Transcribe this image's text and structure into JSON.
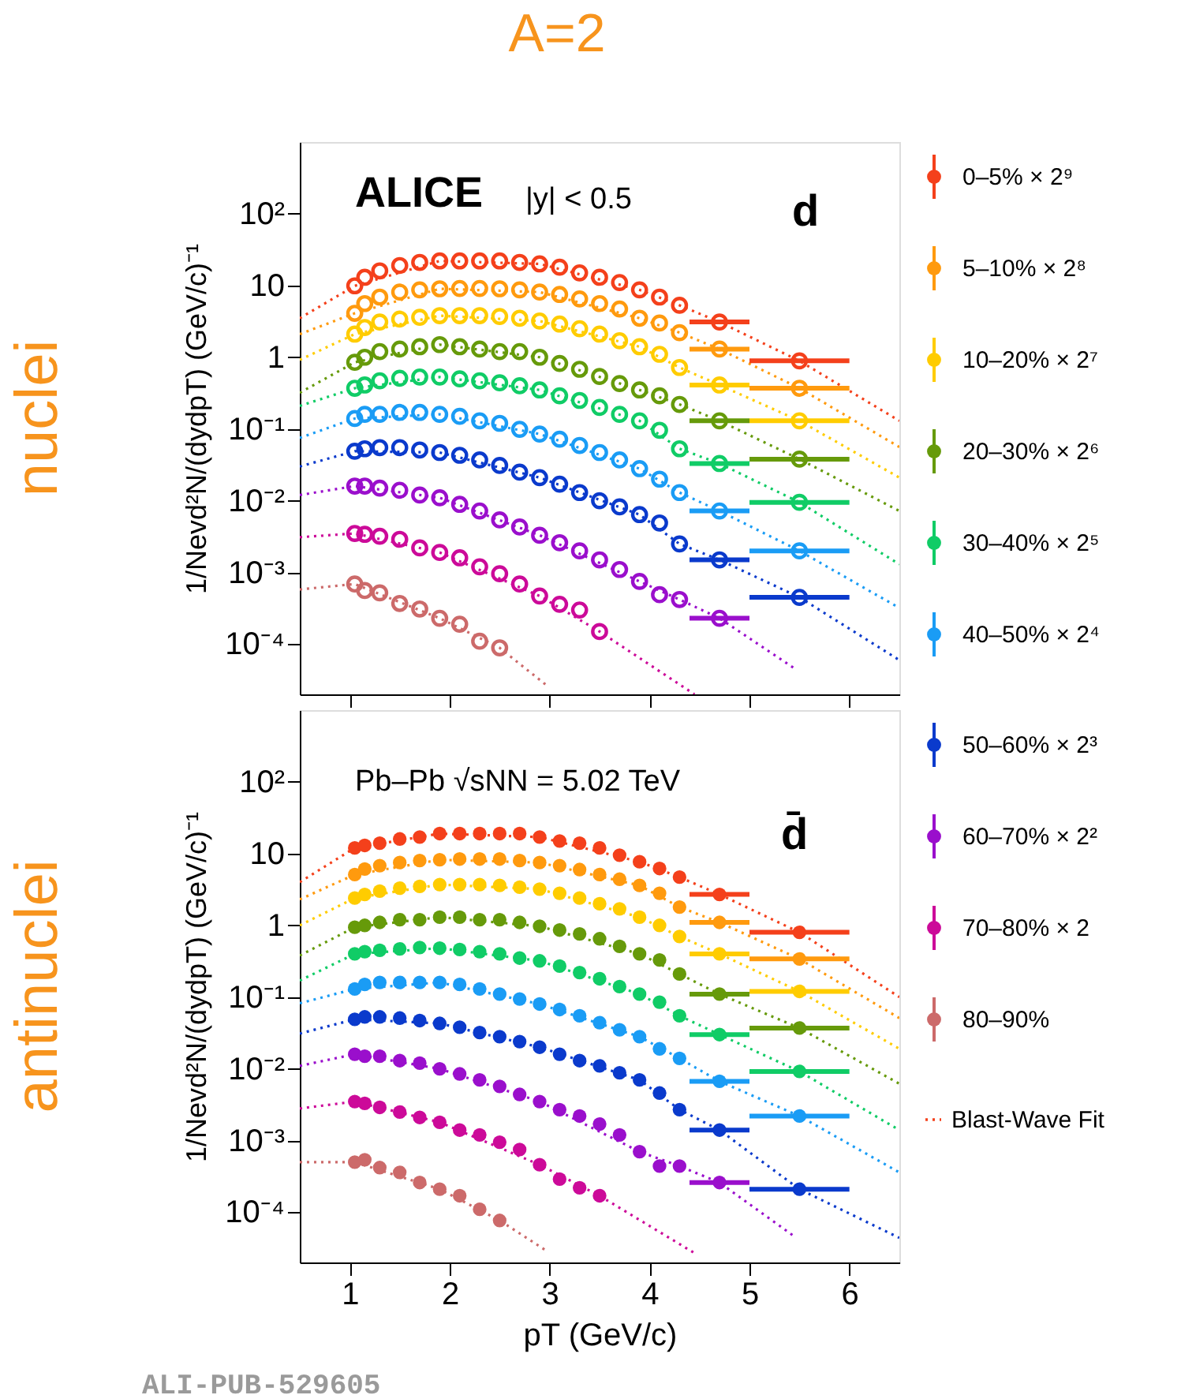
{
  "chart_data": [
    {
      "type": "scatter",
      "title": "A=2",
      "ylabel": "1/Nevd²N/(dydpT) (GeV/c)⁻¹",
      "log": "y",
      "xlim": [
        0.5,
        6.5
      ],
      "ylim": [
        2e-05,
        1000
      ],
      "xticks": [
        1,
        2,
        3,
        4,
        5,
        6
      ],
      "yticks": [
        {
          "value": 0.0001,
          "label": "10⁻⁴"
        },
        {
          "value": 0.001,
          "label": "10⁻³"
        },
        {
          "value": 0.01,
          "label": "10⁻²"
        },
        {
          "value": 0.1,
          "label": "10⁻¹"
        },
        1,
        10,
        {
          "value": 100,
          "label": "10²"
        }
      ],
      "tick_labels": "y",
      "legend": "right",
      "marker": "circle",
      "annotations": [
        "nuclei",
        "ALICE",
        "|y| < 0.5",
        "d"
      ],
      "x": [
        1.05,
        1.15,
        1.3,
        1.5,
        1.7,
        1.9,
        2.1,
        2.3,
        2.5,
        2.7,
        2.9,
        3.1,
        3.3,
        3.5,
        3.7,
        3.9,
        4.1,
        4.3,
        4.7,
        5.5
      ],
      "series": [
        {
          "name": "0–5% × 2⁹",
          "color": "#f4401b",
          "values": [
            9.9,
            13,
            16,
            19,
            21,
            22,
            22,
            22,
            22,
            21,
            20,
            18,
            15,
            13,
            11,
            8.7,
            6.9,
            5.3,
            3.1,
            0.89
          ],
          "xerrors": [
            null,
            null,
            null,
            null,
            null,
            null,
            null,
            null,
            null,
            null,
            null,
            null,
            null,
            null,
            null,
            null,
            null,
            null,
            0.3,
            0.5
          ]
        },
        {
          "name": "5–10% × 2⁸",
          "color": "#ff9a0e",
          "values": [
            4.1,
            5.6,
            6.9,
            8.1,
            8.7,
            9.0,
            9.1,
            9.1,
            9.0,
            8.7,
            8.1,
            7.5,
            6.5,
            5.6,
            4.7,
            3.5,
            3.0,
            2.2,
            1.3,
            0.37
          ],
          "xerrors": [
            null,
            null,
            null,
            null,
            null,
            null,
            null,
            null,
            null,
            null,
            null,
            null,
            null,
            null,
            null,
            null,
            null,
            null,
            0.3,
            0.5
          ]
        },
        {
          "name": "10–20% × 2⁷",
          "color": "#ffcc00",
          "values": [
            2.1,
            2.6,
            3.1,
            3.4,
            3.6,
            3.8,
            3.8,
            3.8,
            3.7,
            3.5,
            3.2,
            2.9,
            2.5,
            2.1,
            1.7,
            1.4,
            1.1,
            0.72,
            0.41,
            0.13
          ],
          "xerrors": [
            null,
            null,
            null,
            null,
            null,
            null,
            null,
            null,
            null,
            null,
            null,
            null,
            null,
            null,
            null,
            null,
            null,
            null,
            0.3,
            0.5
          ]
        },
        {
          "name": "20–30% × 2⁶",
          "color": "#669a0a",
          "values": [
            0.85,
            1.0,
            1.2,
            1.3,
            1.4,
            1.5,
            1.4,
            1.3,
            1.2,
            1.2,
            1.0,
            0.82,
            0.68,
            0.54,
            0.43,
            0.35,
            0.29,
            0.22,
            0.13,
            0.038
          ],
          "xerrors": [
            null,
            null,
            null,
            null,
            null,
            null,
            null,
            null,
            null,
            null,
            null,
            null,
            null,
            null,
            null,
            null,
            null,
            null,
            0.3,
            0.5
          ]
        },
        {
          "name": "30–40% × 2⁵",
          "color": "#10cc66",
          "values": [
            0.37,
            0.41,
            0.47,
            0.51,
            0.53,
            0.53,
            0.5,
            0.47,
            0.44,
            0.4,
            0.35,
            0.29,
            0.25,
            0.2,
            0.16,
            0.13,
            0.096,
            0.053,
            0.033,
            0.0095
          ],
          "xerrors": [
            null,
            null,
            null,
            null,
            null,
            null,
            null,
            null,
            null,
            null,
            null,
            null,
            null,
            null,
            null,
            null,
            null,
            null,
            0.3,
            0.5
          ]
        },
        {
          "name": "40–50% × 2⁴",
          "color": "#1a9cf5",
          "values": [
            0.14,
            0.16,
            0.16,
            0.17,
            0.17,
            0.16,
            0.15,
            0.13,
            0.12,
            0.099,
            0.085,
            0.072,
            0.059,
            0.047,
            0.037,
            0.028,
            0.02,
            0.013,
            0.0072,
            0.002
          ],
          "xerrors": [
            null,
            null,
            null,
            null,
            null,
            null,
            null,
            null,
            null,
            null,
            null,
            null,
            null,
            null,
            null,
            null,
            null,
            null,
            0.3,
            0.5
          ]
        },
        {
          "color": "#0a3acc",
          "values": [
            0.049,
            0.053,
            0.055,
            0.055,
            0.051,
            0.047,
            0.043,
            0.037,
            0.031,
            0.025,
            0.021,
            0.017,
            0.013,
            0.01,
            0.0082,
            0.0064,
            0.0049,
            0.0025,
            0.0015,
            0.00045
          ],
          "xerrors": [
            null,
            null,
            null,
            null,
            null,
            null,
            null,
            null,
            null,
            null,
            null,
            null,
            null,
            null,
            null,
            null,
            null,
            null,
            0.3,
            0.5
          ]
        },
        {
          "color": "#9a0fcc",
          "values": [
            0.016,
            0.016,
            0.015,
            0.014,
            0.012,
            0.011,
            0.0089,
            0.0072,
            0.0054,
            0.0043,
            0.0033,
            0.0026,
            0.002,
            0.0015,
            0.0011,
            0.00075,
            0.00049,
            0.00042,
            0.00023,
            null
          ],
          "xerrors": [
            null,
            null,
            null,
            null,
            null,
            null,
            null,
            null,
            null,
            null,
            null,
            null,
            null,
            null,
            null,
            null,
            null,
            null,
            0.3,
            null
          ]
        },
        {
          "color": "#cc0a99",
          "values": [
            0.0035,
            0.0034,
            0.0032,
            0.0029,
            0.0022,
            0.0019,
            0.0016,
            0.0012,
            0.00096,
            0.00069,
            0.00047,
            0.00036,
            0.0003,
            0.00015,
            null,
            null,
            null,
            null,
            null,
            null
          ]
        },
        {
          "color": "#cc6a6a",
          "values": [
            0.00069,
            0.00056,
            0.00052,
            0.00037,
            0.00031,
            0.00023,
            0.00019,
            0.00011,
            8.9e-05,
            null,
            null,
            null,
            null,
            null,
            null,
            null,
            null,
            null,
            null,
            null
          ]
        },
        {
          "type": "line",
          "line_style": "dotted",
          "marker": "none",
          "color": "#f4401b",
          "x": [
            0.5,
            1.05,
            1.9,
            2.9,
            3.9,
            4.3,
            4.7,
            5.5,
            6.5
          ],
          "values": [
            3.5,
            9.9,
            22,
            20,
            8.7,
            5.3,
            3.1,
            0.89,
            0.13
          ]
        },
        {
          "type": "line",
          "line_style": "dotted",
          "marker": "none",
          "color": "#ff9a0e",
          "x": [
            0.5,
            1.05,
            1.9,
            2.9,
            3.9,
            4.3,
            4.7,
            5.5,
            6.5
          ],
          "values": [
            2.1,
            4.1,
            9.0,
            8.1,
            3.5,
            2.2,
            1.3,
            0.37,
            0.056
          ]
        },
        {
          "type": "line",
          "line_style": "dotted",
          "marker": "none",
          "color": "#ffcc00",
          "x": [
            0.5,
            1.05,
            1.9,
            2.9,
            3.9,
            4.3,
            4.7,
            5.5,
            6.5
          ],
          "values": [
            0.92,
            2.1,
            3.8,
            3.2,
            1.4,
            0.72,
            0.41,
            0.13,
            0.021
          ]
        },
        {
          "type": "line",
          "line_style": "dotted",
          "marker": "none",
          "color": "#669a0a",
          "x": [
            0.5,
            1.05,
            1.9,
            2.9,
            3.9,
            4.3,
            4.7,
            5.5,
            6.5
          ],
          "values": [
            0.32,
            0.85,
            1.5,
            1.0,
            0.35,
            0.22,
            0.13,
            0.038,
            0.0072
          ]
        },
        {
          "type": "line",
          "line_style": "dotted",
          "marker": "none",
          "color": "#10cc66",
          "x": [
            0.5,
            1.05,
            1.9,
            2.9,
            3.9,
            4.3,
            4.7,
            5.5,
            6.5
          ],
          "values": [
            0.21,
            0.37,
            0.53,
            0.35,
            0.13,
            0.053,
            0.033,
            0.0095,
            0.0013
          ]
        },
        {
          "type": "line",
          "line_style": "dotted",
          "marker": "none",
          "color": "#1a9cf5",
          "x": [
            0.5,
            1.05,
            1.9,
            2.9,
            3.9,
            4.3,
            4.7,
            5.5,
            6.5
          ],
          "values": [
            0.075,
            0.14,
            0.16,
            0.085,
            0.028,
            0.013,
            0.0072,
            0.002,
            0.00032
          ]
        },
        {
          "type": "line",
          "line_style": "dotted",
          "marker": "none",
          "color": "#0a3acc",
          "x": [
            0.5,
            1.05,
            1.9,
            2.9,
            3.9,
            4.3,
            4.7,
            5.5,
            6.5
          ],
          "values": [
            0.03,
            0.049,
            0.047,
            0.021,
            0.0064,
            0.0025,
            0.0015,
            0.00045,
            6e-05
          ]
        },
        {
          "type": "line",
          "line_style": "dotted",
          "marker": "none",
          "color": "#9a0fcc",
          "x": [
            0.5,
            1.05,
            1.9,
            2.9,
            3.9,
            4.3,
            4.7,
            5.44
          ],
          "values": [
            0.012,
            0.016,
            0.011,
            0.0033,
            0.00075,
            0.00042,
            0.00023,
            4.7e-05
          ]
        },
        {
          "type": "line",
          "line_style": "dotted",
          "marker": "none",
          "color": "#cc0a99",
          "x": [
            0.5,
            1.05,
            1.9,
            2.9,
            3.5,
            4.45
          ],
          "values": [
            0.0031,
            0.0035,
            0.0019,
            0.00047,
            0.00015,
            2e-05
          ]
        },
        {
          "type": "line",
          "line_style": "dotted",
          "marker": "none",
          "color": "#cc6a6a",
          "x": [
            0.5,
            1.05,
            1.9,
            2.5,
            2.98
          ],
          "values": [
            0.00058,
            0.00069,
            0.00023,
            8.9e-05,
            2.6e-05
          ]
        }
      ]
    },
    {
      "type": "scatter",
      "xlabel": "pT (GeV/c)",
      "ylabel": "1/Nevd²N/(dydpT) (GeV/c)⁻¹",
      "log": "y",
      "xlim": [
        0.5,
        6.5
      ],
      "ylim": [
        2e-05,
        1000
      ],
      "xticks": [
        1,
        2,
        3,
        4,
        5,
        6
      ],
      "yticks": [
        {
          "value": 0.0001,
          "label": "10⁻⁴"
        },
        {
          "value": 0.001,
          "label": "10⁻³"
        },
        {
          "value": 0.01,
          "label": "10⁻²"
        },
        {
          "value": 0.1,
          "label": "10⁻¹"
        },
        1,
        10,
        {
          "value": 100,
          "label": "10²"
        }
      ],
      "legend": "right",
      "marker": "circle",
      "annotations": [
        "antinuclei",
        "Pb–Pb √sNN = 5.02 TeV",
        "d̄",
        "ALI-PUB-529605"
      ],
      "x": [
        1.05,
        1.15,
        1.3,
        1.5,
        1.7,
        1.9,
        2.1,
        2.3,
        2.5,
        2.7,
        2.9,
        3.1,
        3.3,
        3.5,
        3.7,
        3.9,
        4.1,
        4.3,
        4.7,
        5.5
      ],
      "series": [
        {
          "color": "#f4401b",
          "values": [
            12,
            13,
            14,
            16,
            17,
            19,
            19,
            19,
            19,
            19,
            17,
            15,
            14,
            12,
            9.5,
            7.7,
            6.2,
            4.7,
            2.7,
            0.8
          ],
          "xerrors": [
            null,
            null,
            null,
            null,
            null,
            null,
            null,
            null,
            null,
            null,
            null,
            null,
            null,
            null,
            null,
            null,
            null,
            null,
            0.3,
            0.5
          ]
        },
        {
          "color": "#ff9a0e",
          "values": [
            5.1,
            6.1,
            6.8,
            7.5,
            8.0,
            8.2,
            8.4,
            8.4,
            8.4,
            8.0,
            7.5,
            6.8,
            6.0,
            5.1,
            4.4,
            3.6,
            2.8,
            1.8,
            1.1,
            0.34
          ],
          "xerrors": [
            null,
            null,
            null,
            null,
            null,
            null,
            null,
            null,
            null,
            null,
            null,
            null,
            null,
            null,
            null,
            null,
            null,
            null,
            0.3,
            0.5
          ]
        },
        {
          "color": "#ffcc00",
          "values": [
            2.4,
            2.7,
            3.0,
            3.3,
            3.5,
            3.7,
            3.7,
            3.7,
            3.6,
            3.4,
            3.2,
            2.8,
            2.4,
            2.0,
            1.7,
            1.3,
            1.0,
            0.7,
            0.4,
            0.12
          ],
          "xerrors": [
            null,
            null,
            null,
            null,
            null,
            null,
            null,
            null,
            null,
            null,
            null,
            null,
            null,
            null,
            null,
            null,
            null,
            null,
            0.3,
            0.5
          ]
        },
        {
          "color": "#669a0a",
          "values": [
            0.94,
            1.0,
            1.1,
            1.2,
            1.2,
            1.3,
            1.3,
            1.2,
            1.2,
            1.1,
            0.97,
            0.86,
            0.76,
            0.65,
            0.51,
            0.4,
            0.33,
            0.21,
            0.11,
            0.037
          ],
          "xerrors": [
            null,
            null,
            null,
            null,
            null,
            null,
            null,
            null,
            null,
            null,
            null,
            null,
            null,
            null,
            null,
            null,
            null,
            null,
            0.3,
            0.5
          ]
        },
        {
          "color": "#10cc66",
          "values": [
            0.4,
            0.43,
            0.45,
            0.47,
            0.49,
            0.48,
            0.46,
            0.43,
            0.4,
            0.35,
            0.32,
            0.27,
            0.22,
            0.18,
            0.14,
            0.11,
            0.085,
            0.055,
            0.03,
            0.0092
          ],
          "xerrors": [
            null,
            null,
            null,
            null,
            null,
            null,
            null,
            null,
            null,
            null,
            null,
            null,
            null,
            null,
            null,
            null,
            null,
            null,
            0.3,
            0.5
          ]
        },
        {
          "color": "#1a9cf5",
          "values": [
            0.13,
            0.15,
            0.16,
            0.16,
            0.16,
            0.16,
            0.15,
            0.13,
            0.11,
            0.094,
            0.08,
            0.067,
            0.055,
            0.044,
            0.035,
            0.028,
            0.019,
            0.014,
            0.0067,
            0.0022
          ],
          "xerrors": [
            null,
            null,
            null,
            null,
            null,
            null,
            null,
            null,
            null,
            null,
            null,
            null,
            null,
            null,
            null,
            null,
            null,
            null,
            0.3,
            0.5
          ]
        },
        {
          "name": "50–60% × 2³",
          "color": "#0a3acc",
          "values": [
            0.049,
            0.053,
            0.053,
            0.051,
            0.047,
            0.043,
            0.038,
            0.032,
            0.028,
            0.024,
            0.02,
            0.016,
            0.013,
            0.011,
            0.0088,
            0.007,
            0.0046,
            0.0027,
            0.0014,
            0.00021
          ],
          "xerrors": [
            null,
            null,
            null,
            null,
            null,
            null,
            null,
            null,
            null,
            null,
            null,
            null,
            null,
            null,
            null,
            null,
            null,
            null,
            0.3,
            0.5
          ]
        },
        {
          "name": "60–70% × 2²",
          "color": "#9a0fcc",
          "values": [
            0.016,
            0.015,
            0.015,
            0.013,
            0.012,
            0.01,
            0.0085,
            0.007,
            0.0057,
            0.0044,
            0.0035,
            0.0027,
            0.0022,
            0.0017,
            0.0012,
            0.0007,
            0.00044,
            0.00044,
            0.00026,
            null
          ],
          "xerrors": [
            null,
            null,
            null,
            null,
            null,
            null,
            null,
            null,
            null,
            null,
            null,
            null,
            null,
            null,
            null,
            null,
            null,
            null,
            0.3,
            null
          ]
        },
        {
          "name": "70–80% × 2",
          "color": "#cc0a99",
          "values": [
            0.0035,
            0.0033,
            0.0029,
            0.0025,
            0.0021,
            0.0018,
            0.0014,
            0.0012,
            0.00095,
            0.00075,
            0.00046,
            0.00029,
            0.00022,
            0.00017,
            null,
            null,
            null,
            null,
            null,
            null
          ]
        },
        {
          "name": "80–90%",
          "color": "#cc6a6a",
          "values": [
            0.0005,
            0.00054,
            0.00042,
            0.00036,
            0.00026,
            0.00021,
            0.00017,
            0.00011,
            7.7e-05,
            null,
            null,
            null,
            null,
            null,
            null,
            null,
            null,
            null,
            null,
            null
          ]
        },
        {
          "name": "Blast-Wave Fit",
          "type": "line",
          "line_style": "dotted",
          "marker": "none",
          "color": "#f4401b",
          "x": [
            0.5,
            1.05,
            1.9,
            2.9,
            3.9,
            4.3,
            4.7,
            5.5,
            6.5
          ],
          "values": [
            4.0,
            12,
            19,
            17,
            7.7,
            4.7,
            2.7,
            0.8,
            0.1
          ]
        },
        {
          "type": "line",
          "line_style": "dotted",
          "marker": "none",
          "color": "#ff9a0e",
          "x": [
            0.5,
            1.05,
            1.9,
            2.9,
            3.9,
            4.3,
            4.7,
            5.5,
            6.5
          ],
          "values": [
            2.3,
            5.1,
            8.2,
            7.5,
            3.6,
            1.8,
            1.1,
            0.34,
            0.051
          ]
        },
        {
          "type": "line",
          "line_style": "dotted",
          "marker": "none",
          "color": "#ffcc00",
          "x": [
            0.5,
            1.05,
            1.9,
            2.9,
            3.9,
            4.3,
            4.7,
            5.5,
            6.5
          ],
          "values": [
            1.0,
            2.4,
            3.7,
            3.2,
            1.3,
            0.7,
            0.4,
            0.12,
            0.019
          ]
        },
        {
          "type": "line",
          "line_style": "dotted",
          "marker": "none",
          "color": "#669a0a",
          "x": [
            0.5,
            1.05,
            1.9,
            2.9,
            3.9,
            4.3,
            4.7,
            5.5,
            6.5
          ],
          "values": [
            0.38,
            0.94,
            1.3,
            0.97,
            0.4,
            0.21,
            0.11,
            0.037,
            0.0062
          ]
        },
        {
          "type": "line",
          "line_style": "dotted",
          "marker": "none",
          "color": "#10cc66",
          "x": [
            0.5,
            1.05,
            1.9,
            2.9,
            3.9,
            4.3,
            4.7,
            5.5,
            6.5
          ],
          "values": [
            0.17,
            0.4,
            0.48,
            0.32,
            0.11,
            0.055,
            0.03,
            0.0092,
            0.0014
          ]
        },
        {
          "type": "line",
          "line_style": "dotted",
          "marker": "none",
          "color": "#1a9cf5",
          "x": [
            0.5,
            1.05,
            1.9,
            2.9,
            3.9,
            4.3,
            4.7,
            5.5,
            6.5
          ],
          "values": [
            0.082,
            0.13,
            0.16,
            0.08,
            0.028,
            0.014,
            0.0067,
            0.0022,
            0.00036
          ]
        },
        {
          "type": "line",
          "line_style": "dotted",
          "marker": "none",
          "color": "#0a3acc",
          "x": [
            0.5,
            1.05,
            1.9,
            2.9,
            3.9,
            4.3,
            4.7,
            5.5,
            6.5
          ],
          "values": [
            0.031,
            0.049,
            0.043,
            0.02,
            0.007,
            0.0027,
            0.0014,
            0.00021,
            4.4e-05
          ]
        },
        {
          "type": "line",
          "line_style": "dotted",
          "marker": "none",
          "color": "#9a0fcc",
          "x": [
            0.5,
            1.05,
            1.9,
            2.9,
            3.9,
            4.3,
            4.7,
            5.44
          ],
          "values": [
            0.011,
            0.016,
            0.01,
            0.0035,
            0.0007,
            0.00044,
            0.00026,
            4.7e-05
          ]
        },
        {
          "type": "line",
          "line_style": "dotted",
          "marker": "none",
          "color": "#cc0a99",
          "x": [
            0.5,
            1.05,
            1.9,
            2.9,
            3.5,
            4.45
          ],
          "values": [
            0.0028,
            0.0035,
            0.0018,
            0.00046,
            0.00017,
            2.7e-05
          ]
        },
        {
          "type": "line",
          "line_style": "dotted",
          "marker": "none",
          "color": "#cc6a6a",
          "x": [
            0.5,
            1.05,
            1.9,
            2.5,
            2.97
          ],
          "values": [
            0.0005,
            0.0005,
            0.00021,
            7.7e-05,
            2.9e-05
          ]
        }
      ]
    }
  ]
}
